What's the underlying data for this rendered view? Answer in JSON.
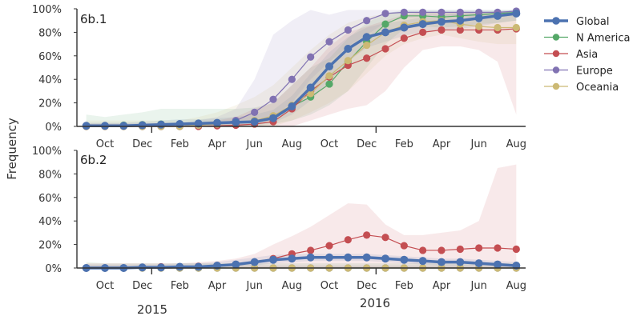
{
  "figure": {
    "ylabel": "Frequency",
    "year_labels": [
      "2015",
      "2016"
    ],
    "series_colors": {
      "Global": "#4c72b0",
      "N America": "#55a868",
      "Asia": "#c44e52",
      "Europe": "#8172b2",
      "Oceania": "#ccb974"
    }
  },
  "legend": {
    "placement": "right",
    "entries": [
      "Global",
      "N America",
      "Asia",
      "Europe",
      "Oceania"
    ]
  },
  "chart_data": [
    {
      "type": "line",
      "panel": "6b.1",
      "x_tick_labels": [
        "Oct",
        "Dec",
        "Feb",
        "Apr",
        "Jun",
        "Aug",
        "Oct",
        "Dec",
        "Feb",
        "Apr",
        "Jun",
        "Aug"
      ],
      "y_tick_labels": [
        "0%",
        "20%",
        "40%",
        "60%",
        "80%",
        "100%"
      ],
      "ylim": [
        0,
        100
      ],
      "grid": false,
      "x": [
        0,
        1,
        2,
        3,
        4,
        5,
        6,
        7,
        8,
        9,
        10,
        11,
        12,
        13,
        14,
        15,
        16,
        17,
        18,
        19,
        20,
        21,
        22,
        23
      ],
      "series": [
        {
          "name": "Global",
          "values": [
            0.5,
            0.5,
            0.5,
            1,
            1.5,
            2,
            2.5,
            3,
            3.5,
            4,
            7,
            17,
            33,
            51,
            66,
            76,
            80,
            84,
            87,
            89,
            90,
            92,
            94,
            96
          ],
          "band_low": [
            0,
            0,
            0,
            0,
            0,
            0,
            0,
            0,
            0,
            1,
            3,
            10,
            22,
            38,
            55,
            67,
            72,
            77,
            80,
            82,
            83,
            85,
            88,
            90
          ],
          "band_high": [
            3,
            3,
            3,
            4,
            5,
            6,
            6,
            7,
            8,
            10,
            14,
            26,
            45,
            63,
            76,
            84,
            88,
            90,
            93,
            95,
            96,
            97,
            98,
            99
          ]
        },
        {
          "name": "N America",
          "values": [
            0.5,
            0.5,
            1,
            1.5,
            2,
            2,
            2,
            2.5,
            3,
            4,
            8,
            17,
            25,
            36,
            55,
            72,
            87,
            94,
            94,
            93,
            94,
            95,
            96,
            97
          ],
          "band_low": [
            0,
            0,
            0,
            0,
            0,
            0,
            0,
            0,
            0,
            0,
            2,
            5,
            10,
            18,
            30,
            50,
            70,
            83,
            85,
            84,
            85,
            87,
            88,
            90
          ],
          "band_high": [
            10,
            8,
            10,
            12,
            15,
            15,
            15,
            15,
            15,
            16,
            20,
            35,
            50,
            58,
            75,
            88,
            96,
            99,
            99,
            99,
            99,
            99,
            99,
            99
          ]
        },
        {
          "name": "Asia",
          "values": [
            0,
            0,
            0,
            0,
            0,
            0,
            0,
            0.5,
            1,
            2,
            4,
            15,
            30,
            42,
            52,
            58,
            66,
            75,
            80,
            82,
            82,
            82,
            82,
            83
          ],
          "band_low": [
            0,
            0,
            0,
            0,
            0,
            0,
            0,
            0,
            0,
            0,
            0,
            0,
            5,
            10,
            15,
            18,
            30,
            50,
            65,
            68,
            68,
            65,
            55,
            10
          ],
          "band_high": [
            2,
            2,
            2,
            2,
            3,
            3,
            3,
            5,
            8,
            15,
            20,
            35,
            50,
            68,
            80,
            85,
            90,
            95,
            97,
            97,
            97,
            97,
            97,
            98
          ]
        },
        {
          "name": "Europe",
          "values": [
            0,
            0,
            0,
            0,
            0,
            0,
            1,
            2,
            5,
            12,
            23,
            40,
            59,
            72,
            82,
            90,
            96,
            97,
            97,
            97,
            97,
            97,
            97,
            98
          ],
          "band_low": [
            0,
            0,
            0,
            0,
            0,
            0,
            0,
            0,
            0,
            2,
            8,
            20,
            40,
            55,
            68,
            78,
            88,
            92,
            93,
            93,
            93,
            93,
            93,
            94
          ],
          "band_high": [
            3,
            3,
            3,
            3,
            3,
            3,
            5,
            8,
            15,
            40,
            78,
            90,
            99,
            95,
            99,
            99,
            99,
            99,
            99,
            99,
            99,
            99,
            99,
            99
          ]
        },
        {
          "name": "Oceania",
          "values": [
            0,
            0,
            0,
            0,
            0,
            0,
            1,
            2,
            3,
            5,
            9,
            18,
            28,
            43,
            56,
            69,
            80,
            86,
            89,
            90,
            87,
            85,
            84,
            84
          ],
          "band_low": [
            0,
            0,
            0,
            0,
            0,
            0,
            0,
            0,
            0,
            0,
            0,
            5,
            12,
            20,
            30,
            45,
            60,
            70,
            75,
            78,
            75,
            72,
            70,
            70
          ],
          "band_high": [
            5,
            5,
            5,
            5,
            5,
            5,
            8,
            12,
            18,
            25,
            35,
            50,
            65,
            78,
            88,
            93,
            96,
            97,
            97,
            97,
            97,
            97,
            97,
            97
          ]
        }
      ]
    },
    {
      "type": "line",
      "panel": "6b.2",
      "x_tick_labels": [
        "Oct",
        "Dec",
        "Feb",
        "Apr",
        "Jun",
        "Aug",
        "Oct",
        "Dec",
        "Feb",
        "Apr",
        "Jun",
        "Aug"
      ],
      "y_tick_labels": [
        "0%",
        "20%",
        "40%",
        "60%",
        "80%",
        "100%"
      ],
      "ylim": [
        0,
        100
      ],
      "grid": false,
      "x": [
        0,
        1,
        2,
        3,
        4,
        5,
        6,
        7,
        8,
        9,
        10,
        11,
        12,
        13,
        14,
        15,
        16,
        17,
        18,
        19,
        20,
        21,
        22,
        23
      ],
      "series": [
        {
          "name": "Global",
          "values": [
            0,
            0,
            0,
            0.5,
            0.5,
            1,
            1,
            2,
            3,
            5,
            7,
            8,
            9,
            9,
            9,
            9,
            8,
            7,
            6,
            5,
            5,
            4,
            3,
            2
          ],
          "band_low": [
            0,
            0,
            0,
            0,
            0,
            0,
            0,
            0,
            1,
            2,
            4,
            5,
            6,
            6,
            6,
            6,
            5,
            4,
            3,
            2,
            2,
            2,
            1,
            0
          ],
          "band_high": [
            3,
            3,
            3,
            3,
            3,
            4,
            4,
            5,
            7,
            9,
            11,
            12,
            12,
            12,
            12,
            12,
            11,
            10,
            9,
            8,
            8,
            7,
            6,
            5
          ]
        },
        {
          "name": "N America",
          "values": [
            0,
            0,
            0,
            0,
            0,
            0,
            0,
            0,
            0,
            0,
            0,
            0,
            0,
            0,
            0,
            0,
            0,
            0,
            0,
            0,
            0,
            0,
            0,
            0
          ],
          "band_low": [
            0,
            0,
            0,
            0,
            0,
            0,
            0,
            0,
            0,
            0,
            0,
            0,
            0,
            0,
            0,
            0,
            0,
            0,
            0,
            0,
            0,
            0,
            0,
            0
          ],
          "band_high": [
            5,
            4,
            4,
            4,
            4,
            4,
            4,
            4,
            4,
            4,
            4,
            4,
            4,
            4,
            4,
            4,
            4,
            4,
            4,
            4,
            4,
            4,
            4,
            4
          ]
        },
        {
          "name": "Asia",
          "values": [
            0,
            0,
            0,
            0.5,
            1,
            1,
            1.5,
            2,
            3,
            5,
            8,
            12,
            15,
            19,
            24,
            28,
            26,
            19,
            15,
            15,
            16,
            17,
            17,
            16
          ],
          "band_low": [
            0,
            0,
            0,
            0,
            0,
            0,
            0,
            0,
            0,
            0,
            0,
            0,
            0,
            0,
            0,
            0,
            0,
            0,
            0,
            0,
            0,
            0,
            0,
            0
          ],
          "band_high": [
            4,
            4,
            4,
            4,
            4,
            4,
            5,
            6,
            8,
            12,
            20,
            27,
            35,
            45,
            55,
            54,
            37,
            28,
            28,
            30,
            32,
            40,
            85,
            88
          ]
        },
        {
          "name": "Europe",
          "values": [
            0,
            0,
            0,
            0,
            0,
            0,
            0,
            0,
            0,
            0,
            0,
            0,
            0,
            0,
            0,
            0,
            0,
            0,
            0,
            0,
            0,
            0,
            0,
            0
          ],
          "band_low": [
            0,
            0,
            0,
            0,
            0,
            0,
            0,
            0,
            0,
            0,
            0,
            0,
            0,
            0,
            0,
            0,
            0,
            0,
            0,
            0,
            0,
            0,
            0,
            0
          ],
          "band_high": [
            2,
            2,
            2,
            2,
            2,
            2,
            2,
            2,
            2,
            2,
            2,
            2,
            2,
            2,
            2,
            2,
            2,
            2,
            2,
            2,
            2,
            2,
            2,
            2
          ]
        },
        {
          "name": "Oceania",
          "values": [
            0,
            0,
            0,
            0,
            0,
            0,
            0,
            0,
            0,
            0,
            0,
            0,
            0,
            0,
            0,
            0,
            0,
            0,
            0,
            0,
            0,
            0,
            0,
            0
          ],
          "band_low": [
            0,
            0,
            0,
            0,
            0,
            0,
            0,
            0,
            0,
            0,
            0,
            0,
            0,
            0,
            0,
            0,
            0,
            0,
            0,
            0,
            0,
            0,
            0,
            0
          ],
          "band_high": [
            2,
            2,
            2,
            2,
            2,
            2,
            2,
            2,
            2,
            2,
            2,
            2,
            2,
            2,
            2,
            2,
            2,
            2,
            2,
            2,
            2,
            2,
            2,
            2
          ]
        }
      ]
    }
  ]
}
